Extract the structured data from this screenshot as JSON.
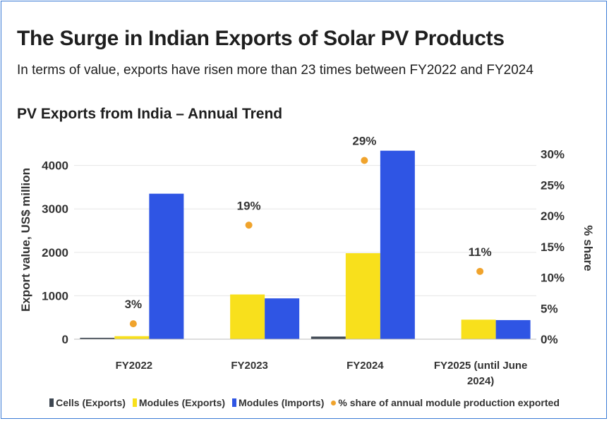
{
  "header": {
    "title": "The Surge in Indian Exports of Solar PV Products",
    "subtitle": "In terms of value, exports have risen more than 23 times between FY2022 and FY2024",
    "chart_title": "PV Exports from India – Annual Trend"
  },
  "colors": {
    "cells": "#3d4651",
    "modules_exports": "#f8e01c",
    "modules_imports": "#2f55e4",
    "share": "#f0a32c",
    "frame": "#3a7bd5",
    "grid": "#e6e6e6"
  },
  "chart_data": {
    "type": "bar",
    "title": "PV Exports from India – Annual Trend",
    "categories": [
      "FY2022",
      "FY2023",
      "FY2024",
      "FY2025 (until June 2024)"
    ],
    "category_label_lines": [
      [
        "FY2022"
      ],
      [
        "FY2023"
      ],
      [
        "FY2024"
      ],
      [
        "FY2025 (until June",
        "2024)"
      ]
    ],
    "series": [
      {
        "name": "Cells (Exports)",
        "axis": "left",
        "values": [
          20,
          0,
          60,
          0
        ]
      },
      {
        "name": "Modules (Exports)",
        "axis": "left",
        "values": [
          70,
          1030,
          1980,
          450
        ]
      },
      {
        "name": "Modules (Imports)",
        "axis": "left",
        "values": [
          3350,
          940,
          4340,
          440
        ]
      },
      {
        "name": "% share of annual module production exported",
        "axis": "right",
        "type": "scatter",
        "values": [
          2.5,
          18.5,
          29,
          11
        ],
        "labels": [
          "3%",
          "19%",
          "29%",
          "11%"
        ]
      }
    ],
    "ylabel": "Export value, US$ million",
    "ylim": [
      0,
      4400
    ],
    "yticks": [
      0,
      1000,
      2000,
      3000,
      4000
    ],
    "y2label": "% share",
    "y2lim": [
      0,
      31
    ],
    "y2ticks": [
      "0%",
      "5%",
      "10%",
      "15%",
      "20%",
      "25%",
      "30%"
    ],
    "y2tick_values": [
      0,
      5,
      10,
      15,
      20,
      25,
      30
    ],
    "grid": true,
    "legend": "bottom"
  }
}
